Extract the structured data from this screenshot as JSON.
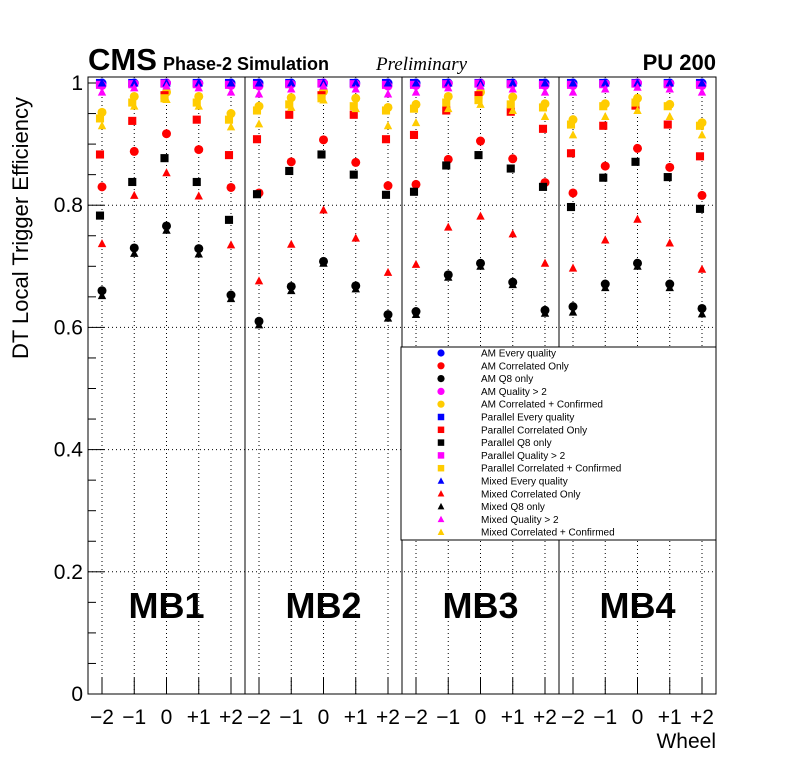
{
  "chart_data": {
    "type": "scatter",
    "experiment": "CMS",
    "subtitle": "Phase-2 Simulation",
    "status": "Preliminary",
    "pileup": "PU 200",
    "ylabel": "DT Local Trigger Efficiency",
    "xlabel": "Wheel",
    "ylim": [
      0,
      1.0
    ],
    "y_ticks": [
      "0",
      "0.2",
      "0.4",
      "0.6",
      "0.8",
      "1"
    ],
    "wheels": [
      "−2",
      "−1",
      "0",
      "+1",
      "+2"
    ],
    "stations": [
      "MB1",
      "MB2",
      "MB3",
      "MB4"
    ],
    "grid": true,
    "legend_position": "right, middle",
    "series": [
      {
        "name": "AM Every quality",
        "marker": "circle",
        "color": "#0000ff",
        "values": [
          [
            1.0,
            1.0,
            1.0,
            1.0,
            1.0
          ],
          [
            1.0,
            1.0,
            1.0,
            1.0,
            1.0
          ],
          [
            1.0,
            1.0,
            1.0,
            1.0,
            1.0
          ],
          [
            1.0,
            1.0,
            1.0,
            1.0,
            1.0
          ]
        ]
      },
      {
        "name": "AM Correlated Only",
        "marker": "circle",
        "color": "#ff0000",
        "values": [
          [
            0.83,
            0.888,
            0.917,
            0.891,
            0.829
          ],
          [
            0.82,
            0.871,
            0.907,
            0.87,
            0.832
          ],
          [
            0.834,
            0.875,
            0.905,
            0.876,
            0.837
          ],
          [
            0.82,
            0.864,
            0.893,
            0.862,
            0.816
          ]
        ]
      },
      {
        "name": "AM Q8 only",
        "marker": "circle",
        "color": "#000000",
        "values": [
          [
            0.66,
            0.73,
            0.766,
            0.729,
            0.653
          ],
          [
            0.61,
            0.667,
            0.708,
            0.668,
            0.621
          ],
          [
            0.626,
            0.686,
            0.705,
            0.674,
            0.628
          ],
          [
            0.634,
            0.671,
            0.705,
            0.671,
            0.631
          ]
        ]
      },
      {
        "name": "AM Quality > 2",
        "marker": "circle",
        "color": "#ff00ff",
        "values": [
          [
            0.996,
            0.999,
            1.0,
            0.999,
            0.996
          ],
          [
            0.995,
            0.998,
            1.0,
            0.998,
            0.995
          ],
          [
            0.996,
            0.999,
            1.0,
            0.999,
            0.996
          ],
          [
            0.996,
            0.999,
            1.0,
            0.999,
            0.996
          ]
        ]
      },
      {
        "name": "AM Correlated + Confirmed",
        "marker": "circle",
        "color": "#ffcc00",
        "values": [
          [
            0.952,
            0.978,
            0.985,
            0.978,
            0.95
          ],
          [
            0.962,
            0.976,
            0.986,
            0.975,
            0.96
          ],
          [
            0.965,
            0.978,
            0.985,
            0.977,
            0.966
          ],
          [
            0.94,
            0.966,
            0.975,
            0.965,
            0.935
          ]
        ]
      },
      {
        "name": "Parallel Every quality",
        "marker": "square",
        "color": "#0000ff",
        "values": [
          [
            1.0,
            1.0,
            1.0,
            1.0,
            1.0
          ],
          [
            1.0,
            1.0,
            1.0,
            1.0,
            1.0
          ],
          [
            1.0,
            1.0,
            1.0,
            1.0,
            1.0
          ],
          [
            1.0,
            1.0,
            1.0,
            1.0,
            1.0
          ]
        ]
      },
      {
        "name": "Parallel Correlated Only",
        "marker": "square",
        "color": "#ff0000",
        "values": [
          [
            0.883,
            0.938,
            0.98,
            0.94,
            0.882
          ],
          [
            0.908,
            0.948,
            0.98,
            0.948,
            0.908
          ],
          [
            0.915,
            0.955,
            0.98,
            0.953,
            0.925
          ],
          [
            0.885,
            0.93,
            0.963,
            0.932,
            0.88
          ]
        ]
      },
      {
        "name": "Parallel Q8 only",
        "marker": "square",
        "color": "#000000",
        "values": [
          [
            0.783,
            0.838,
            0.877,
            0.838,
            0.776
          ],
          [
            0.818,
            0.856,
            0.883,
            0.85,
            0.817
          ],
          [
            0.822,
            0.865,
            0.882,
            0.86,
            0.83
          ],
          [
            0.797,
            0.845,
            0.871,
            0.846,
            0.794
          ]
        ]
      },
      {
        "name": "Parallel Quality > 2",
        "marker": "square",
        "color": "#ff00ff",
        "values": [
          [
            0.997,
            0.998,
            0.999,
            0.998,
            0.997
          ],
          [
            0.997,
            0.998,
            0.999,
            0.998,
            0.997
          ],
          [
            0.997,
            0.998,
            0.999,
            0.998,
            0.997
          ],
          [
            0.997,
            0.998,
            0.999,
            0.998,
            0.997
          ]
        ]
      },
      {
        "name": "Parallel Correlated + Confirmed",
        "marker": "square",
        "color": "#ffcc00",
        "values": [
          [
            0.942,
            0.968,
            0.975,
            0.968,
            0.94
          ],
          [
            0.955,
            0.965,
            0.975,
            0.962,
            0.955
          ],
          [
            0.958,
            0.968,
            0.972,
            0.965,
            0.96
          ],
          [
            0.932,
            0.962,
            0.968,
            0.962,
            0.93
          ]
        ]
      },
      {
        "name": "Mixed Every quality",
        "marker": "triangle",
        "color": "#0000ff",
        "values": [
          [
            1.0,
            1.0,
            1.0,
            1.0,
            1.0
          ],
          [
            1.0,
            1.0,
            1.0,
            1.0,
            1.0
          ],
          [
            1.0,
            1.0,
            1.0,
            1.0,
            1.0
          ],
          [
            1.0,
            1.0,
            1.0,
            1.0,
            1.0
          ]
        ]
      },
      {
        "name": "Mixed Correlated Only",
        "marker": "triangle",
        "color": "#ff0000",
        "values": [
          [
            0.737,
            0.816,
            0.853,
            0.815,
            0.735
          ],
          [
            0.676,
            0.736,
            0.792,
            0.746,
            0.69
          ],
          [
            0.703,
            0.764,
            0.782,
            0.753,
            0.705
          ],
          [
            0.697,
            0.743,
            0.777,
            0.738,
            0.695
          ]
        ]
      },
      {
        "name": "Mixed Q8 only",
        "marker": "triangle",
        "color": "#000000",
        "values": [
          [
            0.652,
            0.721,
            0.759,
            0.72,
            0.647
          ],
          [
            0.604,
            0.66,
            0.705,
            0.663,
            0.615
          ],
          [
            0.621,
            0.682,
            0.7,
            0.67,
            0.623
          ],
          [
            0.625,
            0.665,
            0.7,
            0.665,
            0.622
          ]
        ]
      },
      {
        "name": "Mixed Quality > 2",
        "marker": "triangle",
        "color": "#ff00ff",
        "values": [
          [
            0.985,
            0.992,
            0.995,
            0.992,
            0.985
          ],
          [
            0.982,
            0.99,
            0.995,
            0.99,
            0.982
          ],
          [
            0.985,
            0.992,
            0.995,
            0.99,
            0.985
          ],
          [
            0.985,
            0.99,
            0.993,
            0.99,
            0.985
          ]
        ]
      },
      {
        "name": "Mixed Correlated + Confirmed",
        "marker": "triangle",
        "color": "#ffcc00",
        "values": [
          [
            0.93,
            0.962,
            0.973,
            0.962,
            0.928
          ],
          [
            0.933,
            0.96,
            0.972,
            0.958,
            0.93
          ],
          [
            0.935,
            0.958,
            0.965,
            0.955,
            0.945
          ],
          [
            0.915,
            0.945,
            0.955,
            0.945,
            0.915
          ]
        ]
      }
    ]
  }
}
